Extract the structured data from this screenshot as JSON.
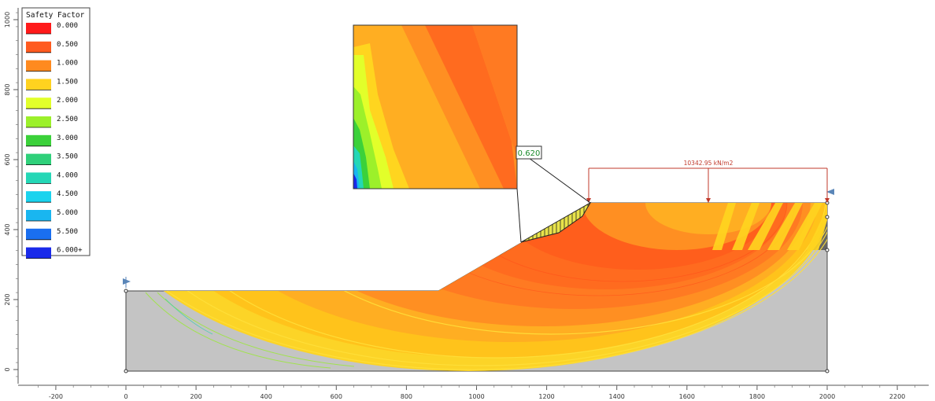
{
  "legend": {
    "title": "Safety Factor",
    "entries": [
      {
        "label": "0.000",
        "color": "#ff1a1a"
      },
      {
        "label": "0.500",
        "color": "#ff5a1f"
      },
      {
        "label": "1.000",
        "color": "#ff8a1f"
      },
      {
        "label": "1.500",
        "color": "#ffd21f"
      },
      {
        "label": "2.000",
        "color": "#e2ff2a"
      },
      {
        "label": "2.500",
        "color": "#9cf02a"
      },
      {
        "label": "3.000",
        "color": "#3bd13a"
      },
      {
        "label": "3.500",
        "color": "#2fd07a"
      },
      {
        "label": "4.000",
        "color": "#24d7b6"
      },
      {
        "label": "4.500",
        "color": "#19d3ee"
      },
      {
        "label": "5.000",
        "color": "#19b6f0"
      },
      {
        "label": "5.500",
        "color": "#1a6ff0"
      },
      {
        "label": "6.000+",
        "color": "#1a2aea"
      }
    ]
  },
  "x_axis": {
    "ticks": [
      "-200",
      "0",
      "200",
      "400",
      "600",
      "800",
      "1000",
      "1200",
      "1400",
      "1600",
      "1800",
      "2000",
      "2200"
    ]
  },
  "y_axis": {
    "ticks": [
      "0",
      "200",
      "400",
      "600",
      "800",
      "1000"
    ]
  },
  "callout": {
    "safety_factor": "0.620"
  },
  "load": {
    "label": "10342.95 kN/m2",
    "color": "#c0392b"
  },
  "colors": {
    "soil_gray": "#c4c4c4",
    "soil_dark": "#646464",
    "layer_orange": "#ff6b2a",
    "boundary": "#444444"
  }
}
